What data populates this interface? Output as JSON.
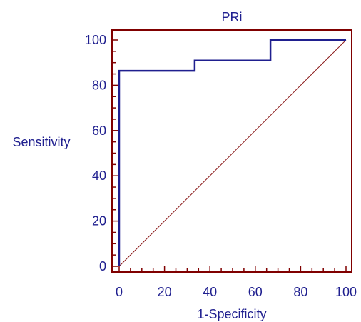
{
  "chart_data": {
    "type": "line",
    "title": "PRi",
    "xlabel": "1-Specificity",
    "ylabel": "Sensitivity",
    "xlim": [
      0,
      100
    ],
    "ylim": [
      0,
      100
    ],
    "xticks": [
      0,
      20,
      40,
      60,
      80,
      100
    ],
    "yticks": [
      0,
      20,
      40,
      60,
      80,
      100
    ],
    "series": [
      {
        "type": "step",
        "x": [
          0,
          0,
          33.3,
          33.3,
          66.7,
          66.7,
          100
        ],
        "y": [
          0,
          86.4,
          86.4,
          90.9,
          90.9,
          100,
          100
        ]
      },
      {
        "type": "reference",
        "x": [
          0,
          100
        ],
        "y": [
          0,
          100
        ]
      }
    ],
    "colors": {
      "roc": "#1f1f8f",
      "reference": "#8b1a1a",
      "frame": "#800000",
      "text": "#1f1f8f"
    },
    "grid": false
  }
}
